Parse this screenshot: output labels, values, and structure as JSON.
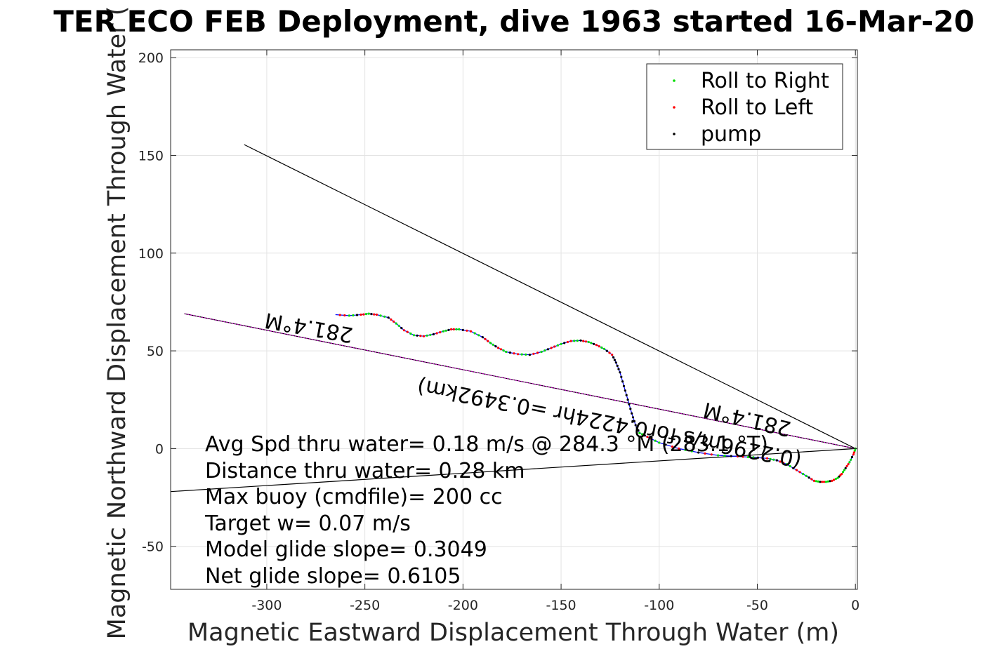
{
  "chart_data": {
    "type": "line",
    "title": "TER ECO FEB Deployment, dive 1963 started 16-Mar-20",
    "xlabel": "Magnetic Eastward Displacement Through Water (m)",
    "ylabel": "Magnetic Northward Displacement Through Water (",
    "xlim": [
      -349,
      1
    ],
    "ylim": [
      -72,
      204
    ],
    "xticks": [
      -300,
      -250,
      -200,
      -150,
      -100,
      -50,
      0
    ],
    "xtick_labels": [
      "-300",
      "-250",
      "-200",
      "-150",
      "-100",
      "-50",
      "0"
    ],
    "yticks": [
      200,
      150,
      100,
      50,
      0,
      -50
    ],
    "ytick_labels": [
      "200",
      "150",
      "100",
      "50",
      "0",
      "-50"
    ],
    "grid": true,
    "legend_position": "top-right",
    "legend": [
      {
        "label": "Roll to Right",
        "color": "#00dd00"
      },
      {
        "label": "Roll to Left",
        "color": "#ff0000"
      },
      {
        "label": "pump",
        "color": "#000000"
      }
    ],
    "colors": {
      "track": "#0000ff",
      "heading_line": "#cc00cc",
      "reference_lines": "#000000"
    },
    "track": {
      "x": [
        0,
        -1,
        -3,
        -5,
        -7,
        -9,
        -12,
        -15,
        -18,
        -21,
        -25,
        -30,
        -35,
        -40,
        -45,
        -52,
        -60,
        -70,
        -80,
        -90,
        -100,
        -106,
        -110,
        -112,
        -114,
        -116,
        -118,
        -120,
        -122,
        -124,
        -128,
        -132,
        -136,
        -140,
        -145,
        -150,
        -155,
        -160,
        -166,
        -172,
        -178,
        -182,
        -186,
        -190,
        -196,
        -202,
        -206,
        -210,
        -215,
        -220,
        -225,
        -230,
        -234,
        -238,
        -244,
        -248,
        -252,
        -258,
        -265
      ],
      "y": [
        0,
        -3,
        -7,
        -10,
        -13,
        -15,
        -16.5,
        -17,
        -17,
        -16.5,
        -14,
        -11,
        -8,
        -6,
        -5,
        -4.5,
        -4,
        -3.5,
        -2,
        0,
        3,
        6,
        8,
        12,
        18,
        25,
        32,
        39,
        44,
        48,
        51,
        53,
        54.5,
        55.3,
        55,
        53.5,
        51.5,
        49.5,
        48,
        48.3,
        49.5,
        51.5,
        54,
        57,
        60,
        61,
        61,
        60,
        58.5,
        57.5,
        58,
        60.5,
        64,
        67,
        68.5,
        69,
        68.5,
        68,
        68.5
      ]
    },
    "reference_lines": [
      {
        "x": [
          0,
          -311.5
        ],
        "y": [
          0,
          155.5
        ]
      },
      {
        "x": [
          0,
          -349
        ],
        "y": [
          0,
          -22
        ]
      },
      {
        "x": [
          0,
          -342
        ],
        "y": [
          0,
          69
        ]
      }
    ],
    "heading_labels": [
      "281.4°M",
      "281.4°M",
      "0.3492km",
      "0.4224hr =",
      "0.2296m/s for",
      "(0.2296m/s for0.4224hr =0.3492km)"
    ],
    "stats": [
      "Avg Spd thru water=  0.18 m/s @ 284.3 °M (283.1 °T)",
      "Distance thru water=  0.28 km",
      "Max buoy (cmdfile)= 200 cc",
      "Target w= 0.07 m/s",
      "Model glide slope= 0.3049",
      "Net glide slope= 0.6105"
    ]
  }
}
